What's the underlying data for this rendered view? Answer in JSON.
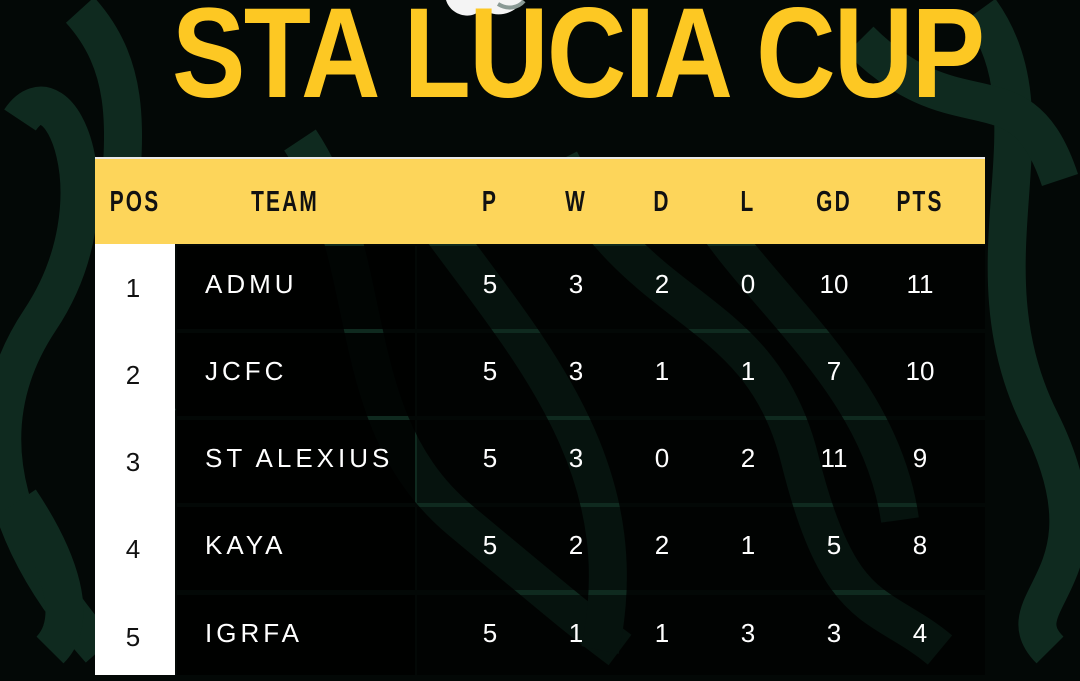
{
  "title": "STA LUCIA CUP",
  "colors": {
    "title": "#fdc823",
    "header_bg": "#fdd55a",
    "background": "#030806",
    "swirl": "#0f2a1f"
  },
  "table": {
    "headers": [
      "POS",
      "TEAM",
      "P",
      "W",
      "D",
      "L",
      "GD",
      "PTS"
    ],
    "rows": [
      {
        "pos": "1",
        "team": "ADMU",
        "p": "5",
        "w": "3",
        "d": "2",
        "l": "0",
        "gd": "10",
        "pts": "11"
      },
      {
        "pos": "2",
        "team": "JCFC",
        "p": "5",
        "w": "3",
        "d": "1",
        "l": "1",
        "gd": "7",
        "pts": "10"
      },
      {
        "pos": "3",
        "team": "ST ALEXIUS",
        "p": "5",
        "w": "3",
        "d": "0",
        "l": "2",
        "gd": "11",
        "pts": "9"
      },
      {
        "pos": "4",
        "team": "KAYA",
        "p": "5",
        "w": "2",
        "d": "2",
        "l": "1",
        "gd": "5",
        "pts": "8"
      },
      {
        "pos": "5",
        "team": "IGRFA",
        "p": "5",
        "w": "1",
        "d": "1",
        "l": "3",
        "gd": "3",
        "pts": "4"
      }
    ]
  }
}
